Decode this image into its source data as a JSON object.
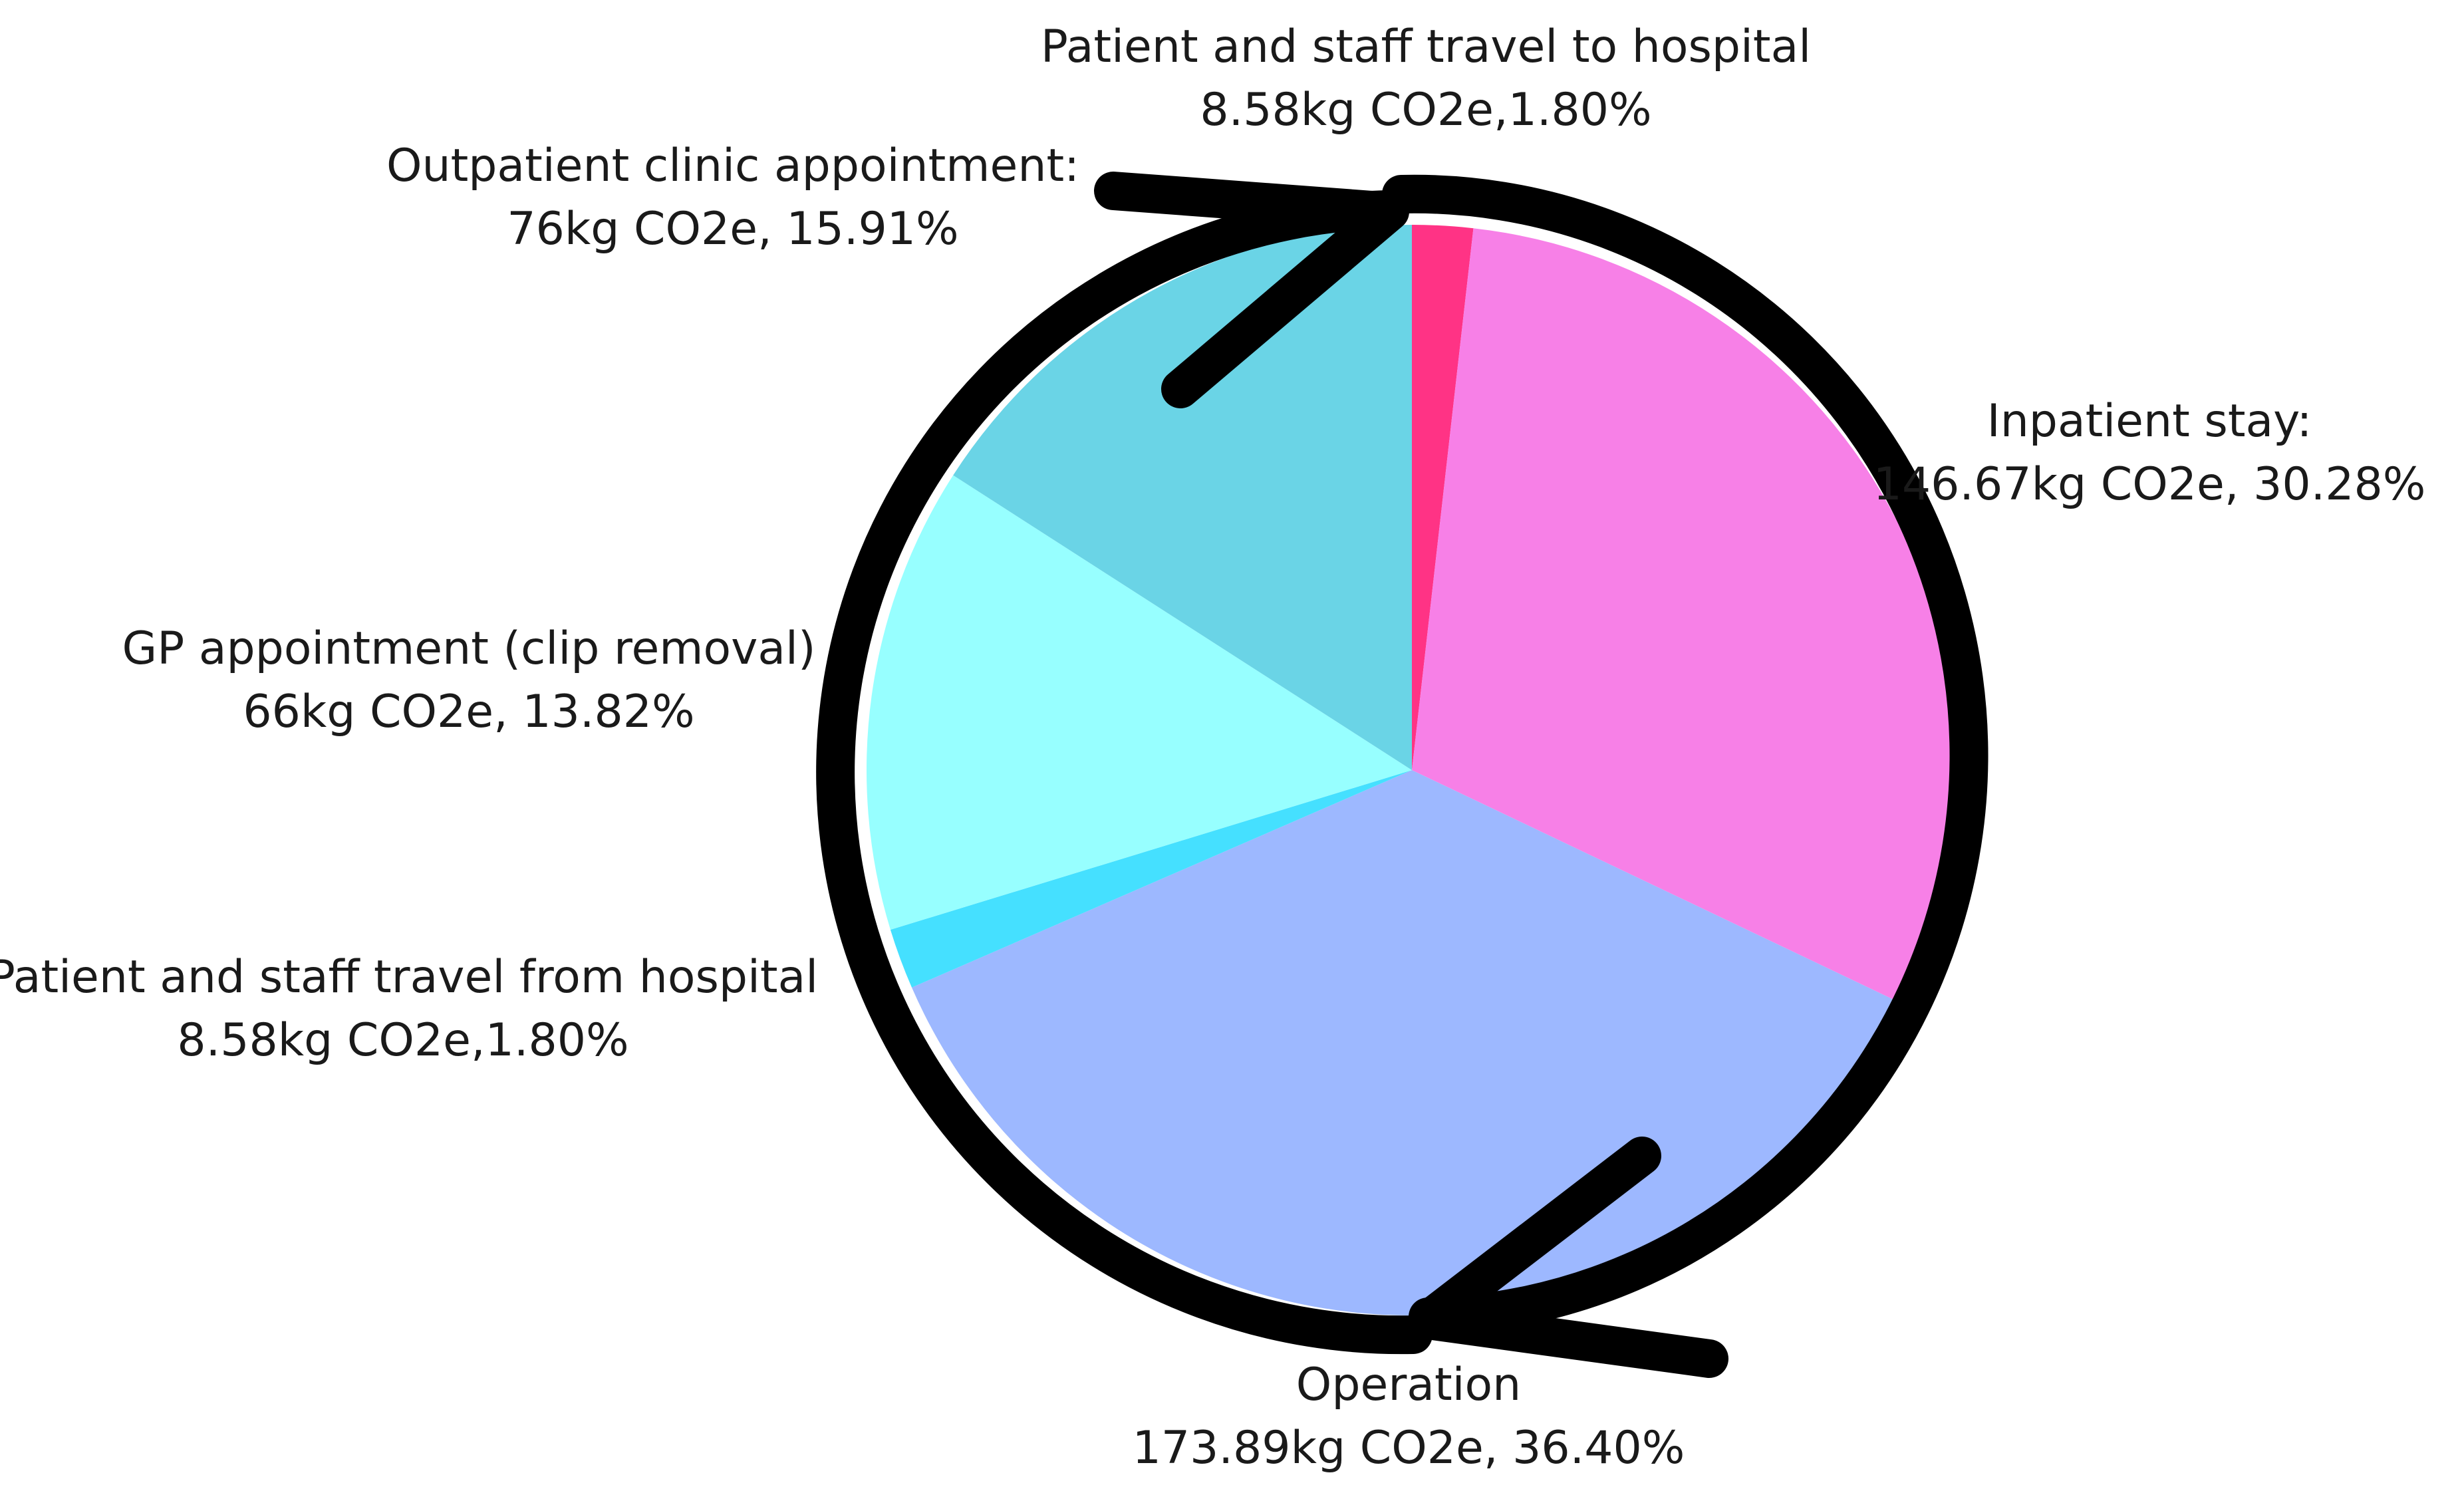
{
  "chart_data": {
    "type": "pie",
    "title": "",
    "start_angle_deg": 0,
    "direction": "clockwise",
    "slices": [
      {
        "label": "Patient and staff travel to hospital",
        "value_text": "8.58kg CO2e,1.80%",
        "value": 8.58,
        "percent": 1.8,
        "color": "#ff3385"
      },
      {
        "label": "Inpatient stay:",
        "value_text": "146.67kg CO2e, 30.28%",
        "value": 146.67,
        "percent": 30.28,
        "color": "#f780e7"
      },
      {
        "label": "Operation",
        "value_text": "173.89kg CO2e, 36.40%",
        "value": 173.89,
        "percent": 36.4,
        "color": "#9db8ff"
      },
      {
        "label": "Patient and staff travel from hospital",
        "value_text": "8.58kg CO2e,1.80%",
        "value": 8.58,
        "percent": 1.8,
        "color": "#45e0ff"
      },
      {
        "label": "GP appointment (clip removal)",
        "value_text": "66kg CO2e, 13.82%",
        "value": 66,
        "percent": 13.82,
        "color": "#97ffff"
      },
      {
        "label": "Outpatient clinic appointment:",
        "value_text": "76kg CO2e, 15.91%",
        "value": 76,
        "percent": 15.91,
        "color": "#6ad4e6"
      }
    ],
    "legend": "none",
    "annotation": "circular clockwise arrows around pie"
  }
}
